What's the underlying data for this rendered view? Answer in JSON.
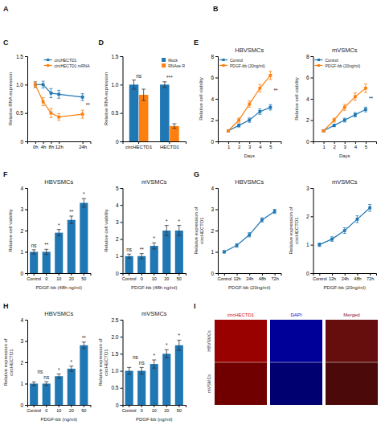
{
  "panel_labels": [
    "A",
    "B",
    "C",
    "D",
    "E",
    "F",
    "G",
    "H",
    "I"
  ],
  "chart_data": [
    {
      "type": "line",
      "x": [
        0,
        4,
        8,
        12,
        24
      ],
      "xlim": [
        -4,
        28
      ],
      "xticks": [
        {
          "value": 0,
          "label": "0h"
        },
        {
          "value": 4,
          "label": "4h"
        },
        {
          "value": 8,
          "label": "8h"
        },
        {
          "value": 12,
          "label": "12h"
        },
        {
          "value": 24,
          "label": "24h"
        }
      ],
      "ylim": [
        0,
        1.5
      ],
      "yticks": [
        0,
        0.5,
        {
          "value": 1.0,
          "label": "1.0"
        },
        1.5
      ],
      "ylabel": "Relative RNA expression",
      "marker": "square",
      "grid": false,
      "legend": "upper right",
      "series": [
        {
          "name": "circHECTD1",
          "values": [
            1.0,
            1.0,
            0.85,
            0.83,
            0.78
          ],
          "errors": [
            0.05,
            0.06,
            0.08,
            0.07,
            0.06
          ]
        },
        {
          "name": "circHECTD1 mRNA",
          "values": [
            1.0,
            0.7,
            0.5,
            0.43,
            0.48
          ],
          "errors": [
            0.05,
            0.07,
            0.08,
            0.06,
            0.07
          ]
        }
      ],
      "annotations": [
        {
          "text": "**"
        }
      ]
    },
    {
      "type": "bar",
      "categories": [
        "circHECTD1",
        "HECTD1"
      ],
      "ylim": [
        0,
        1.5
      ],
      "yticks": [
        0,
        0.5,
        {
          "value": 1.0,
          "label": "1.0"
        },
        1.5
      ],
      "ylabel": "Relative RNA expression",
      "grid": false,
      "legend": "upper right",
      "series": [
        {
          "name": "Mock",
          "values": [
            1.0,
            1.0
          ],
          "errors": [
            0.08,
            0.05
          ]
        },
        {
          "name": "RNAse R",
          "values": [
            0.82,
            0.27
          ],
          "errors": [
            0.1,
            0.04
          ]
        }
      ],
      "annotations": [
        {
          "text": "ns",
          "category": "circHECTD1"
        },
        {
          "text": "***",
          "category": "HECTD1"
        }
      ]
    },
    {
      "type": "line",
      "title": "HBVSMCs",
      "x": [
        1,
        2,
        3,
        4,
        5
      ],
      "xlim": [
        0,
        6
      ],
      "xticks": [
        1,
        2,
        3,
        4,
        5
      ],
      "xlabel": "Days",
      "ylim": [
        0,
        8
      ],
      "yticks": [
        0,
        2,
        4,
        6,
        8
      ],
      "ylabel": "Relative cell viability",
      "marker": "square",
      "grid": false,
      "legend": "upper left",
      "series": [
        {
          "name": "Control",
          "values": [
            1.0,
            1.5,
            2.0,
            2.8,
            3.2
          ],
          "errors": [
            0.1,
            0.15,
            0.2,
            0.25,
            0.25
          ]
        },
        {
          "name": "PDGF-bb (20ng/ml)",
          "values": [
            1.0,
            2.0,
            3.5,
            5.0,
            6.2
          ],
          "errors": [
            0.1,
            0.2,
            0.3,
            0.35,
            0.4
          ]
        }
      ],
      "annotations": [
        {
          "text": "**"
        }
      ]
    },
    {
      "type": "line",
      "title": "mVSMCs",
      "x": [
        1,
        2,
        3,
        4,
        5
      ],
      "xlim": [
        0,
        6
      ],
      "xticks": [
        1,
        2,
        3,
        4,
        5
      ],
      "xlabel": "Days",
      "ylim": [
        0,
        8
      ],
      "yticks": [
        0,
        2,
        4,
        6,
        8
      ],
      "ylabel": "Relative cell viability",
      "marker": "square",
      "grid": false,
      "legend": "upper left",
      "series": [
        {
          "name": "Control",
          "values": [
            1.0,
            1.5,
            2.0,
            2.5,
            3.0
          ],
          "errors": [
            0.1,
            0.12,
            0.18,
            0.2,
            0.22
          ]
        },
        {
          "name": "PDGF-bb (20ng/ml)",
          "values": [
            1.0,
            2.0,
            3.2,
            4.2,
            5.0
          ],
          "errors": [
            0.1,
            0.18,
            0.28,
            0.35,
            0.4
          ]
        }
      ],
      "annotations": [
        {
          "text": "**"
        }
      ]
    },
    {
      "type": "bar",
      "title": "HBVSMCs",
      "categories": [
        "Control",
        "0",
        "10",
        "20",
        "50"
      ],
      "values": [
        1.0,
        1.0,
        1.9,
        2.5,
        3.3
      ],
      "errors": [
        0.1,
        0.12,
        0.15,
        0.18,
        0.2
      ],
      "xlabel": "PDGF-bb (48h ng/ml)",
      "ylim": [
        0,
        4
      ],
      "yticks": [
        0,
        1,
        2,
        3,
        4
      ],
      "ylabel": "Relative cell viability",
      "grid": false,
      "annotations": [
        {
          "text": "ns",
          "category": "Control"
        },
        {
          "text": "**",
          "category": "0"
        },
        {
          "text": "*",
          "category": "10"
        },
        {
          "text": "**",
          "category": "20"
        },
        {
          "text": "*",
          "category": "50"
        }
      ]
    },
    {
      "type": "bar",
      "title": "mVSMCs",
      "categories": [
        "Control",
        "0",
        "10",
        "20",
        "50"
      ],
      "values": [
        1.0,
        1.0,
        1.6,
        2.5,
        2.5
      ],
      "errors": [
        0.12,
        0.15,
        0.18,
        0.3,
        0.3
      ],
      "xlabel": "PDGF-bb (48h ng/ml)",
      "ylim": [
        0,
        5
      ],
      "yticks": [
        0,
        1,
        2,
        3,
        4,
        5
      ],
      "ylabel": "Relative cell viability",
      "grid": false,
      "annotations": [
        {
          "text": "ns",
          "category": "Control"
        },
        {
          "text": "**",
          "category": "0"
        },
        {
          "text": "*",
          "category": "10"
        },
        {
          "text": "*",
          "category": "20"
        },
        {
          "text": "*",
          "category": "50"
        }
      ]
    },
    {
      "type": "line",
      "title": "HBVSMCs",
      "categories": [
        "Control",
        "12h",
        "24h",
        "48h",
        "72h"
      ],
      "values": [
        1.0,
        1.3,
        1.8,
        2.5,
        2.9
      ],
      "errors": [
        0.06,
        0.08,
        0.1,
        0.1,
        0.1
      ],
      "xlabel": "PDGF-bb (20ng/ml)",
      "ylim": [
        0,
        4
      ],
      "yticks": [
        0,
        1,
        2,
        3,
        4
      ],
      "ylabel": "Relative expression of\ncircHECTD1",
      "marker": "square",
      "grid": false
    },
    {
      "type": "line",
      "title": "mVSMCs",
      "categories": [
        "Control",
        "12h",
        "24h",
        "48h",
        "72h"
      ],
      "values": [
        1.0,
        1.2,
        1.5,
        1.9,
        2.3
      ],
      "errors": [
        0.06,
        0.08,
        0.1,
        0.12,
        0.12
      ],
      "xlabel": "PDGF-bb (20ng/ml)",
      "ylim": [
        0,
        3
      ],
      "yticks": [
        0,
        1,
        2,
        3
      ],
      "ylabel": "Relative expression of\ncircHECTD1",
      "marker": "square",
      "grid": false
    },
    {
      "type": "bar",
      "title": "HBVSMCs",
      "categories": [
        "Control",
        "0",
        "10",
        "20",
        "50"
      ],
      "values": [
        1.0,
        1.0,
        1.35,
        1.7,
        2.8
      ],
      "errors": [
        0.08,
        0.09,
        0.1,
        0.12,
        0.15
      ],
      "xlabel": "PDGF-bb (ng/ml)",
      "ylim": [
        0,
        4
      ],
      "yticks": [
        0,
        1,
        2,
        3,
        4
      ],
      "ylabel": "Relative expression of\ncircHECTD1",
      "grid": false,
      "annotations": [
        {
          "text": "ns",
          "category": "0"
        },
        {
          "text": "*",
          "category": "10"
        },
        {
          "text": "*",
          "category": "20"
        },
        {
          "text": "**",
          "category": "50"
        },
        {
          "text": "ns",
          "categories": [
            "Control",
            "0"
          ]
        }
      ]
    },
    {
      "type": "bar",
      "title": "mVSMCs",
      "categories": [
        "Control",
        "0",
        "10",
        "20",
        "50"
      ],
      "values": [
        1.0,
        1.0,
        1.2,
        1.5,
        1.75
      ],
      "errors": [
        0.1,
        0.1,
        0.12,
        0.12,
        0.15
      ],
      "xlabel": "PDGF-bb (ng/ml)",
      "ylim": [
        0,
        2.5
      ],
      "yticks": [
        0,
        0.5,
        {
          "value": 1.0,
          "label": "1.0"
        },
        1.5,
        {
          "value": 2.0,
          "label": "2.0"
        },
        2.5
      ],
      "ylabel": "Relative expression of\ncircHECTD1",
      "grid": false,
      "annotations": [
        {
          "text": "ns",
          "category": "0"
        },
        {
          "text": "*",
          "category": "10"
        },
        {
          "text": "*",
          "category": "20"
        },
        {
          "text": "*",
          "category": "50"
        },
        {
          "text": "ns",
          "categories": [
            "Control",
            "0"
          ]
        }
      ]
    }
  ],
  "image_panel": {
    "columns": [
      "circHECTD1",
      "DAPI",
      "Merged"
    ],
    "rows": [
      "HBVSMCs",
      "mVSMCs"
    ],
    "colors": [
      "#CC0000",
      "#0000CC",
      "#881111"
    ]
  }
}
